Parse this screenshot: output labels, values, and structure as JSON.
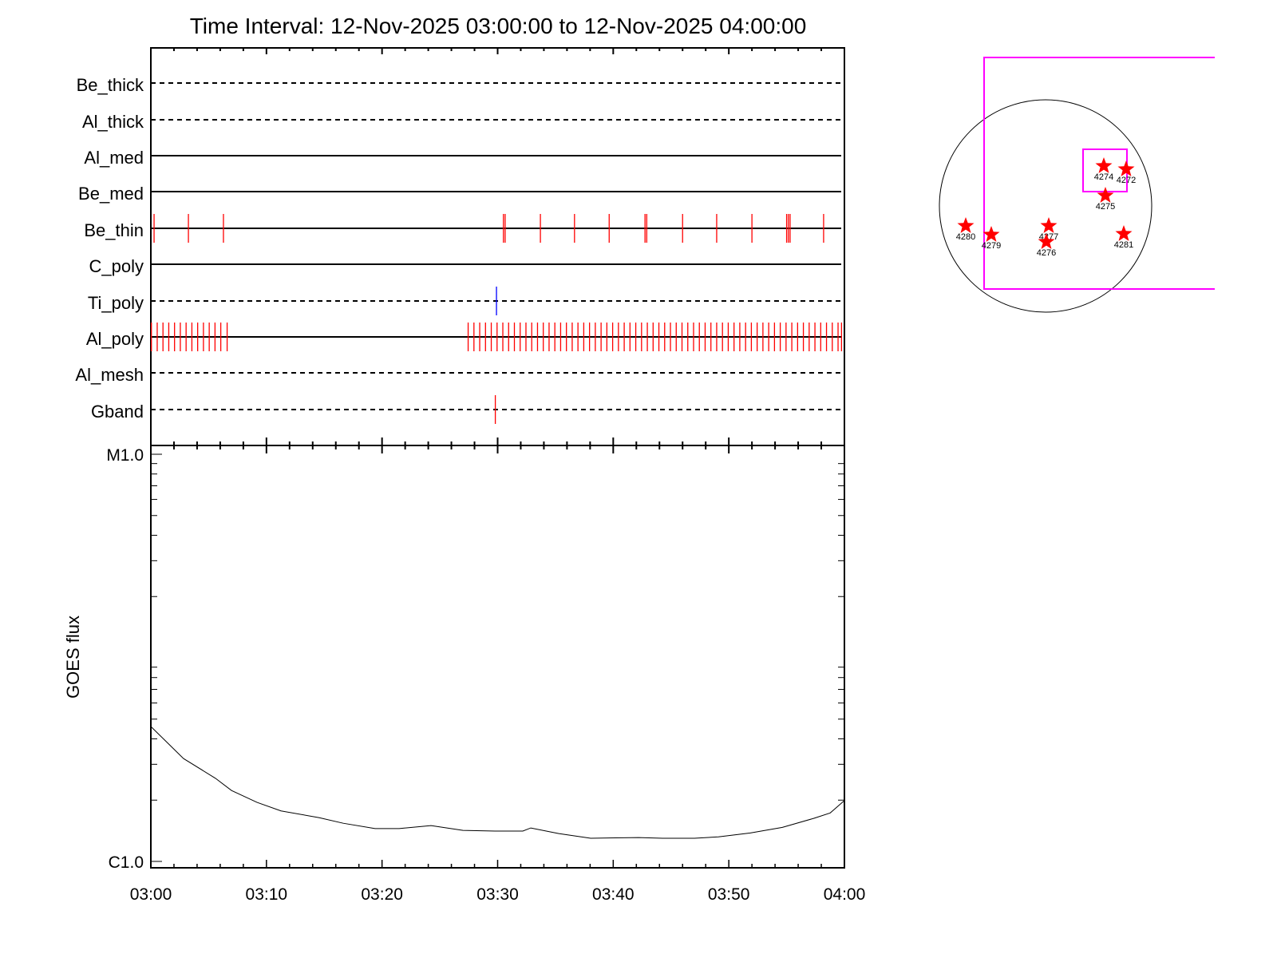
{
  "chart_data": [
    {
      "type": "scatter",
      "title": "Time Interval: 12-Nov-2025 03:00:00 to 12-Nov-2025 04:00:00",
      "x_unit": "minutes after 03:00",
      "xlim": [
        0,
        60
      ],
      "rows": [
        {
          "label": "Be_thick",
          "line": "dashed",
          "events": []
        },
        {
          "label": "Al_thick",
          "line": "dashed",
          "events": []
        },
        {
          "label": "Al_med",
          "line": "solid",
          "events": []
        },
        {
          "label": "Be_med",
          "line": "solid",
          "events": []
        },
        {
          "label": "Be_thin",
          "line": "solid",
          "event_color": "#ff0000",
          "events": [
            0.28,
            3.25,
            6.28,
            30.5,
            30.65,
            33.7,
            36.65,
            39.65,
            42.75,
            42.9,
            46.0,
            48.95,
            52.0,
            55.0,
            55.15,
            55.3,
            58.2
          ]
        },
        {
          "label": "C_poly",
          "line": "solid",
          "events": []
        },
        {
          "label": "Ti_poly",
          "line": "dashed",
          "event_color": "#0000ff",
          "events": [
            29.9
          ]
        },
        {
          "label": "Al_poly",
          "line": "solid",
          "event_color": "#ff0000",
          "events": [
            0.05,
            0.55,
            1.05,
            1.55,
            2.05,
            2.55,
            3.05,
            3.55,
            4.05,
            4.55,
            5.05,
            5.55,
            6.05,
            6.6,
            27.45,
            27.95,
            28.45,
            28.95,
            29.45,
            29.95,
            30.45,
            30.95,
            31.45,
            31.95,
            32.45,
            32.95,
            33.45,
            33.95,
            34.45,
            34.95,
            35.45,
            35.95,
            36.45,
            36.95,
            37.45,
            37.95,
            38.45,
            38.95,
            39.45,
            39.95,
            40.45,
            40.95,
            41.45,
            41.95,
            42.45,
            42.95,
            43.45,
            43.95,
            44.45,
            44.95,
            45.45,
            45.95,
            46.45,
            46.95,
            47.45,
            47.95,
            48.45,
            48.95,
            49.45,
            49.95,
            50.45,
            50.95,
            51.45,
            51.95,
            52.45,
            52.95,
            53.45,
            53.95,
            54.45,
            54.95,
            55.45,
            55.95,
            56.45,
            56.95,
            57.45,
            57.95,
            58.45,
            58.95,
            59.45,
            59.75
          ]
        },
        {
          "label": "Al_mesh",
          "line": "dashed",
          "events": []
        },
        {
          "label": "Gband",
          "line": "dashed",
          "event_color": "#ff0000",
          "events": [
            29.8
          ]
        }
      ]
    },
    {
      "type": "line",
      "ylabel": "GOES flux",
      "yscale": "log",
      "ylim": [
        1e-06,
        0.0001
      ],
      "y_tick_labels": [
        "C1.0",
        "M1.0"
      ],
      "x_tick_labels": [
        "03:00",
        "03:10",
        "03:20",
        "03:30",
        "03:40",
        "03:50",
        "04:00"
      ],
      "xlim": [
        0,
        60
      ],
      "line_color": "#000000",
      "x": [
        0,
        2.83,
        5.59,
        6.98,
        9.19,
        11.26,
        14.57,
        16.64,
        19.4,
        21.48,
        24.24,
        27.0,
        29.77,
        32.18,
        32.87,
        35.29,
        38.05,
        42.2,
        44.27,
        47.03,
        49.1,
        51.86,
        54.63,
        57.39,
        58.77,
        60
      ],
      "y": [
        4.6e-06,
        3.2e-06,
        2.56e-06,
        2.23e-06,
        1.95e-06,
        1.77e-06,
        1.64e-06,
        1.54e-06,
        1.45e-06,
        1.45e-06,
        1.5e-06,
        1.42e-06,
        1.41e-06,
        1.41e-06,
        1.46e-06,
        1.37e-06,
        1.3e-06,
        1.31e-06,
        1.3e-06,
        1.3e-06,
        1.32e-06,
        1.38e-06,
        1.47e-06,
        1.63e-06,
        1.73e-06,
        1.99e-06
      ]
    },
    {
      "type": "scatter",
      "description_kind": "solar disk map",
      "fov_color": "#ff00ff",
      "marker_color": "#ff0000",
      "regions": [
        {
          "label": "4274"
        },
        {
          "label": "4272"
        },
        {
          "label": "4275"
        },
        {
          "label": "4280"
        },
        {
          "label": "4279"
        },
        {
          "label": "4277"
        },
        {
          "label": "4276"
        },
        {
          "label": "4281"
        }
      ]
    }
  ]
}
